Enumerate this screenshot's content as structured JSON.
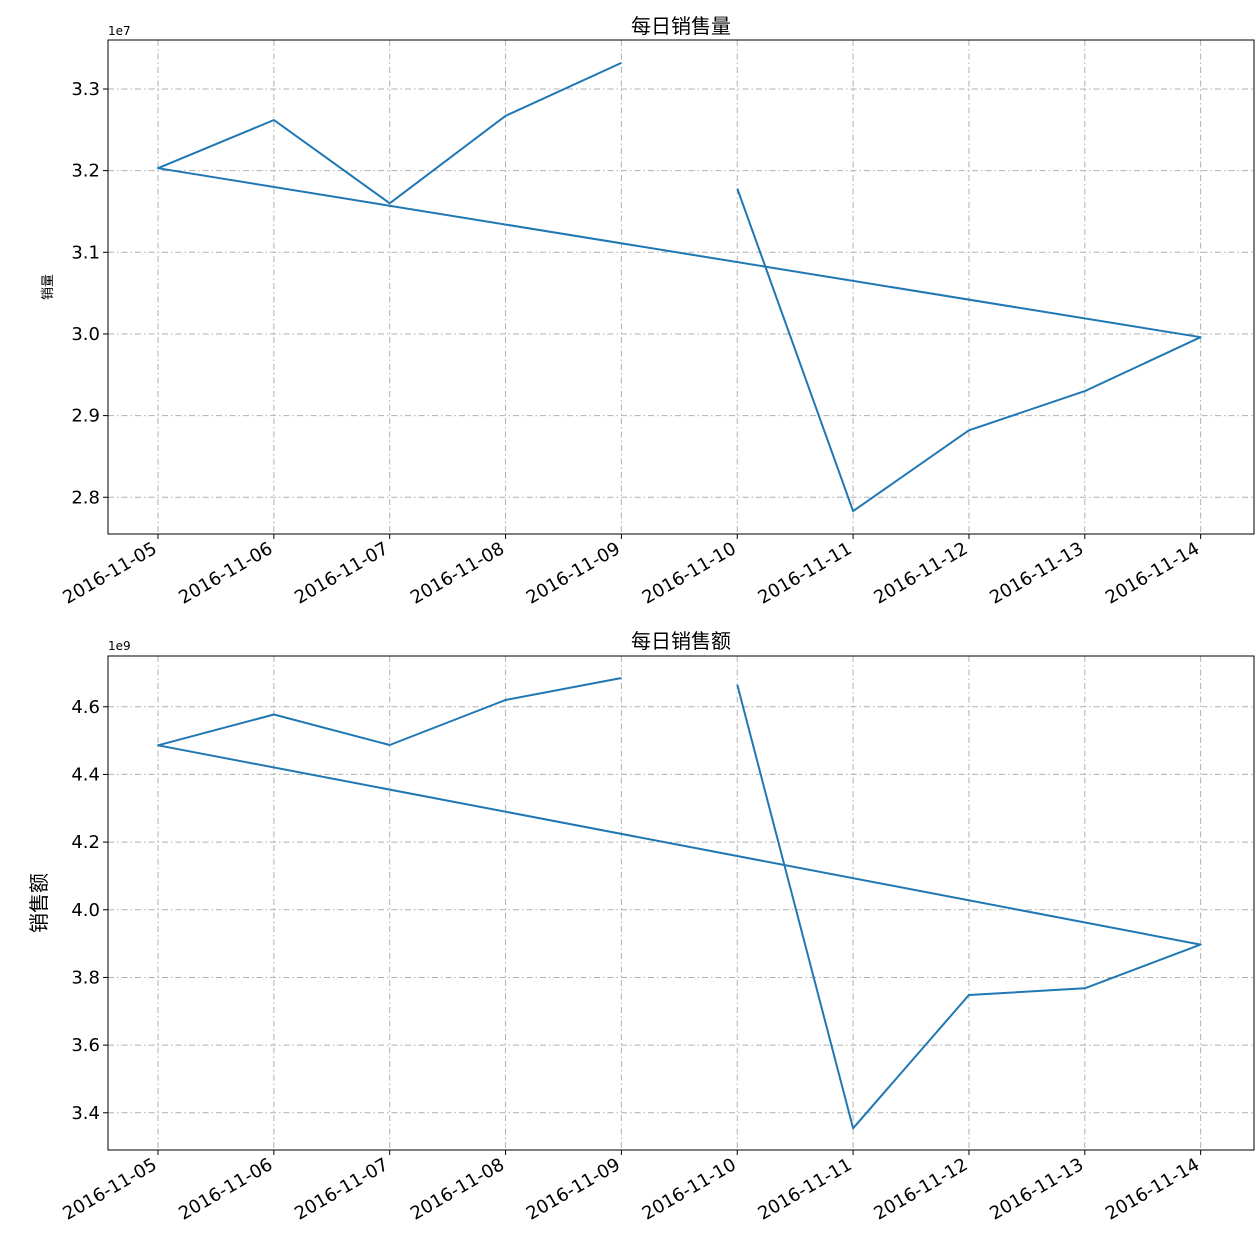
{
  "chart_data": [
    {
      "type": "line",
      "title": "每日销售量",
      "ylabel": "销量",
      "offset_text": "1e7",
      "ylim": [
        2.755,
        3.36
      ],
      "yticks": [
        2.8,
        2.9,
        3.0,
        3.1,
        3.2,
        3.3
      ],
      "ytick_labels": [
        "2.8",
        "2.9",
        "3.0",
        "3.1",
        "3.2",
        "3.3"
      ],
      "xticks": [
        "2016-11-05",
        "2016-11-06",
        "2016-11-07",
        "2016-11-08",
        "2016-11-09",
        "2016-11-10",
        "2016-11-11",
        "2016-11-12",
        "2016-11-13",
        "2016-11-14"
      ],
      "grid": true,
      "segments": [
        {
          "x": [
            "2016-11-09",
            "2016-11-08",
            "2016-11-07",
            "2016-11-06",
            "2016-11-05",
            "2016-11-14",
            "2016-11-13",
            "2016-11-12",
            "2016-11-11",
            "2016-11-10"
          ],
          "y": [
            3.332,
            3.267,
            3.16,
            3.262,
            3.203,
            2.996,
            2.93,
            2.882,
            2.783,
            3.178
          ]
        }
      ]
    },
    {
      "type": "line",
      "title": "每日销售额",
      "ylabel": "销售额",
      "offset_text": "1e9",
      "ylim": [
        3.29,
        4.75
      ],
      "yticks": [
        3.4,
        3.6,
        3.8,
        4.0,
        4.2,
        4.4,
        4.6
      ],
      "ytick_labels": [
        "3.4",
        "3.6",
        "3.8",
        "4.0",
        "4.2",
        "4.4",
        "4.6"
      ],
      "xticks": [
        "2016-11-05",
        "2016-11-06",
        "2016-11-07",
        "2016-11-08",
        "2016-11-09",
        "2016-11-10",
        "2016-11-11",
        "2016-11-12",
        "2016-11-13",
        "2016-11-14"
      ],
      "grid": true,
      "segments": [
        {
          "x": [
            "2016-11-09",
            "2016-11-08",
            "2016-11-07",
            "2016-11-06",
            "2016-11-05",
            "2016-11-14",
            "2016-11-13",
            "2016-11-12",
            "2016-11-11",
            "2016-11-10"
          ],
          "y": [
            4.685,
            4.62,
            4.487,
            4.577,
            4.486,
            3.897,
            3.768,
            3.748,
            3.354,
            4.665
          ]
        }
      ]
    }
  ]
}
